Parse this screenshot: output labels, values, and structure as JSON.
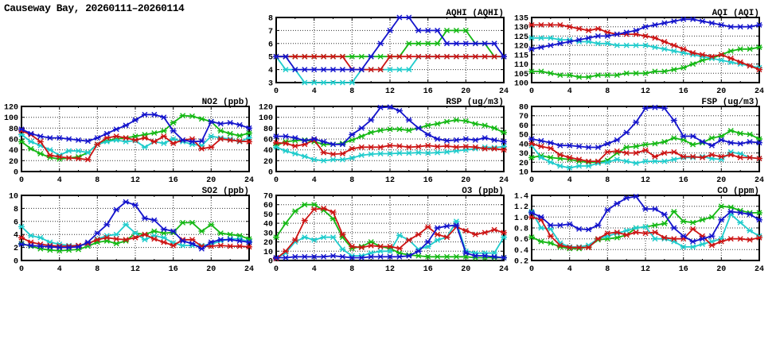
{
  "page_title": "Causeway Bay, 20260111–20260114",
  "axis": {
    "x_range": [
      0,
      24
    ],
    "x_ticks": [
      0,
      4,
      8,
      12,
      16,
      20,
      24
    ],
    "x_minor_step": 2,
    "x_hours": [
      0,
      1,
      2,
      3,
      4,
      5,
      6,
      7,
      8,
      9,
      10,
      11,
      12,
      13,
      14,
      15,
      16,
      17,
      18,
      19,
      20,
      21,
      22,
      23,
      24
    ]
  },
  "series_colors": {
    "blue": "#1414cc",
    "red": "#cc1414",
    "green": "#14b814",
    "cyan": "#20cccc"
  },
  "chart_data": [
    {
      "id": "aqhi",
      "type": "line",
      "title": "AQHI (AQHI)",
      "ylim": [
        3,
        8
      ],
      "yticks": [
        "3",
        "4",
        "5",
        "6",
        "7",
        "8"
      ],
      "grid": true,
      "legend": "none",
      "series": [
        {
          "name": "green",
          "color": "#14b814",
          "values": [
            5,
            5,
            5,
            5,
            5,
            5,
            5,
            5,
            5,
            5,
            5,
            5,
            5,
            5,
            6,
            6,
            6,
            6,
            7,
            7,
            7,
            6,
            6,
            5,
            5
          ]
        },
        {
          "name": "cyan",
          "color": "#20cccc",
          "values": [
            5,
            4,
            4,
            3,
            3,
            3,
            3,
            3,
            3,
            4,
            4,
            4,
            4,
            4,
            4,
            5,
            5,
            5,
            5,
            5,
            5,
            5,
            5,
            5,
            5
          ]
        },
        {
          "name": "red",
          "color": "#cc1414",
          "values": [
            5,
            5,
            5,
            5,
            5,
            5,
            5,
            5,
            4,
            4,
            4,
            4,
            5,
            5,
            5,
            5,
            5,
            5,
            5,
            5,
            5,
            5,
            5,
            5,
            5
          ]
        },
        {
          "name": "blue",
          "color": "#1414cc",
          "values": [
            5,
            5,
            4,
            4,
            4,
            4,
            4,
            4,
            4,
            4,
            5,
            6,
            7,
            8,
            8,
            7,
            7,
            7,
            6,
            6,
            6,
            6,
            6,
            6,
            5
          ]
        }
      ]
    },
    {
      "id": "aqi",
      "type": "line",
      "title": "AQI (AQI)",
      "ylim": [
        100,
        135
      ],
      "yticks": [
        "100",
        "105",
        "110",
        "115",
        "120",
        "125",
        "130",
        "135"
      ],
      "grid": true,
      "legend": "none",
      "series": [
        {
          "name": "green",
          "color": "#14b814",
          "values": [
            106,
            106,
            105,
            104,
            104,
            103,
            103,
            104,
            104,
            104,
            105,
            105,
            105,
            106,
            106,
            107,
            108,
            110,
            112,
            113,
            115,
            117,
            118,
            118,
            119
          ]
        },
        {
          "name": "cyan",
          "color": "#20cccc",
          "values": [
            124,
            124,
            124,
            123,
            123,
            122,
            122,
            121,
            121,
            120,
            120,
            120,
            120,
            119,
            118,
            117,
            116,
            115,
            114,
            113,
            112,
            111,
            110,
            109,
            108
          ]
        },
        {
          "name": "red",
          "color": "#cc1414",
          "values": [
            131,
            131,
            131,
            131,
            130,
            129,
            128,
            129,
            127,
            126,
            126,
            126,
            125,
            124,
            122,
            120,
            118,
            116,
            115,
            114,
            115,
            113,
            111,
            109,
            107
          ]
        },
        {
          "name": "blue",
          "color": "#1414cc",
          "values": [
            118,
            119,
            120,
            121,
            122,
            123,
            124,
            125,
            125,
            126,
            127,
            128,
            130,
            131,
            132,
            133,
            134,
            134,
            133,
            132,
            131,
            130,
            130,
            130,
            131
          ]
        }
      ]
    },
    {
      "id": "no2",
      "type": "line",
      "title": "NO2 (ppb)",
      "ylim": [
        0,
        120
      ],
      "yticks": [
        "0",
        "20",
        "40",
        "60",
        "80",
        "100",
        "120"
      ],
      "grid": true,
      "legend": "none",
      "series": [
        {
          "name": "green",
          "color": "#14b814",
          "values": [
            55,
            42,
            33,
            26,
            23,
            25,
            27,
            35,
            50,
            57,
            60,
            62,
            65,
            68,
            71,
            75,
            90,
            103,
            102,
            97,
            92,
            75,
            70,
            66,
            71
          ]
        },
        {
          "name": "cyan",
          "color": "#20cccc",
          "values": [
            68,
            55,
            48,
            40,
            30,
            38,
            38,
            35,
            50,
            55,
            58,
            55,
            57,
            45,
            55,
            52,
            60,
            55,
            50,
            48,
            65,
            62,
            60,
            55,
            62
          ]
        },
        {
          "name": "red",
          "color": "#cc1414",
          "values": [
            75,
            68,
            55,
            30,
            27,
            25,
            24,
            22,
            50,
            62,
            65,
            62,
            58,
            62,
            55,
            65,
            52,
            58,
            60,
            42,
            45,
            60,
            58,
            56,
            55
          ]
        },
        {
          "name": "blue",
          "color": "#1414cc",
          "values": [
            78,
            70,
            65,
            62,
            62,
            60,
            58,
            56,
            62,
            70,
            78,
            85,
            95,
            105,
            105,
            100,
            75,
            58,
            55,
            56,
            92,
            88,
            90,
            86,
            80
          ]
        }
      ]
    },
    {
      "id": "rsp",
      "type": "line",
      "title": "RSP (ug/m3)",
      "ylim": [
        0,
        120
      ],
      "yticks": [
        "0",
        "20",
        "40",
        "60",
        "80",
        "100",
        "120"
      ],
      "grid": true,
      "legend": "none",
      "series": [
        {
          "name": "green",
          "color": "#14b814",
          "values": [
            48,
            55,
            57,
            58,
            55,
            50,
            50,
            52,
            58,
            65,
            72,
            76,
            78,
            78,
            76,
            80,
            85,
            88,
            92,
            95,
            93,
            88,
            85,
            80,
            72
          ]
        },
        {
          "name": "cyan",
          "color": "#20cccc",
          "values": [
            45,
            38,
            33,
            28,
            22,
            20,
            22,
            22,
            25,
            30,
            32,
            33,
            33,
            34,
            34,
            35,
            34,
            35,
            36,
            38,
            40,
            42,
            45,
            44,
            46
          ]
        },
        {
          "name": "red",
          "color": "#cc1414",
          "values": [
            53,
            52,
            47,
            50,
            58,
            35,
            32,
            33,
            42,
            45,
            45,
            45,
            48,
            47,
            45,
            46,
            48,
            46,
            47,
            45,
            46,
            45,
            42,
            42,
            40
          ]
        },
        {
          "name": "blue",
          "color": "#1414cc",
          "values": [
            65,
            65,
            62,
            57,
            60,
            55,
            50,
            50,
            68,
            80,
            95,
            118,
            119,
            112,
            95,
            80,
            68,
            60,
            57,
            58,
            60,
            58,
            62,
            58,
            55
          ]
        }
      ]
    },
    {
      "id": "fsp",
      "type": "line",
      "title": "FSP (ug/m3)",
      "ylim": [
        10,
        80
      ],
      "yticks": [
        "10",
        "20",
        "30",
        "40",
        "50",
        "60",
        "70",
        "80"
      ],
      "grid": true,
      "legend": "none",
      "series": [
        {
          "name": "green",
          "color": "#14b814",
          "values": [
            25,
            27,
            25,
            24,
            23,
            21,
            20,
            20,
            22,
            30,
            36,
            37,
            39,
            40,
            42,
            46,
            44,
            39,
            41,
            46,
            48,
            54,
            51,
            50,
            45
          ]
        },
        {
          "name": "cyan",
          "color": "#20cccc",
          "values": [
            38,
            25,
            20,
            16,
            14,
            16,
            16,
            19,
            20,
            23,
            21,
            19,
            21,
            21,
            21,
            23,
            25,
            25,
            26,
            24,
            23,
            31,
            29,
            25,
            24
          ]
        },
        {
          "name": "red",
          "color": "#cc1414",
          "values": [
            40,
            37,
            35,
            28,
            25,
            23,
            21,
            21,
            31,
            32,
            30,
            30,
            33,
            26,
            30,
            31,
            26,
            26,
            25,
            28,
            26,
            28,
            25,
            25,
            24
          ]
        },
        {
          "name": "blue",
          "color": "#1414cc",
          "values": [
            45,
            43,
            41,
            38,
            38,
            37,
            36,
            36,
            40,
            44,
            52,
            63,
            78,
            79,
            78,
            65,
            48,
            48,
            42,
            38,
            44,
            41,
            40,
            42,
            41
          ]
        }
      ]
    },
    {
      "id": "so2",
      "type": "line",
      "title": "SO2 (ppb)",
      "ylim": [
        0,
        10
      ],
      "yticks": [
        "0",
        "2",
        "4",
        "6",
        "8",
        "10"
      ],
      "grid": true,
      "legend": "none",
      "series": [
        {
          "name": "green",
          "color": "#14b814",
          "values": [
            2.6,
            2.2,
            1.8,
            1.6,
            1.5,
            1.6,
            1.7,
            2.2,
            2.8,
            3.0,
            2.6,
            3.0,
            4.2,
            4.0,
            4.5,
            4.2,
            4.3,
            5.8,
            5.8,
            4.5,
            5.5,
            4.2,
            4.0,
            3.8,
            3.3
          ]
        },
        {
          "name": "cyan",
          "color": "#20cccc",
          "values": [
            5.2,
            3.8,
            3.5,
            2.8,
            2.5,
            2.3,
            2.3,
            2.5,
            3.3,
            3.8,
            4.0,
            5.5,
            4.2,
            3.2,
            3.8,
            3.5,
            2.7,
            2.3,
            2.3,
            2.3,
            2.5,
            3.0,
            3.3,
            3.3,
            2.9
          ]
        },
        {
          "name": "red",
          "color": "#cc1414",
          "values": [
            3.5,
            2.8,
            2.5,
            2.3,
            2.2,
            2.2,
            2.3,
            2.6,
            3.2,
            3.5,
            3.3,
            3.2,
            3.5,
            4.0,
            3.3,
            2.8,
            2.3,
            3.2,
            3.2,
            2.2,
            2.2,
            2.3,
            2.2,
            2.2,
            2.1
          ]
        },
        {
          "name": "blue",
          "color": "#1414cc",
          "values": [
            2.5,
            2.3,
            2.2,
            2.1,
            2.0,
            2.0,
            2.1,
            2.8,
            4.2,
            5.5,
            7.8,
            9.0,
            8.5,
            6.5,
            6.2,
            4.8,
            4.5,
            3.0,
            2.6,
            1.8,
            2.8,
            3.2,
            3.2,
            3.0,
            2.8
          ]
        }
      ]
    },
    {
      "id": "o3",
      "type": "line",
      "title": "O3 (ppb)",
      "ylim": [
        0,
        70
      ],
      "yticks": [
        "0",
        "10",
        "20",
        "30",
        "40",
        "50",
        "60",
        "70"
      ],
      "grid": true,
      "legend": "none",
      "series": [
        {
          "name": "green",
          "color": "#14b814",
          "values": [
            25,
            40,
            53,
            60,
            60,
            54,
            45,
            25,
            13,
            15,
            20,
            15,
            13,
            8,
            6,
            5,
            4,
            4,
            4,
            4,
            4,
            3,
            3,
            3,
            3
          ]
        },
        {
          "name": "cyan",
          "color": "#20cccc",
          "values": [
            2,
            8,
            20,
            25,
            22,
            25,
            25,
            12,
            5,
            5,
            8,
            10,
            10,
            27,
            22,
            12,
            15,
            22,
            25,
            42,
            10,
            8,
            8,
            8,
            25
          ]
        },
        {
          "name": "red",
          "color": "#cc1414",
          "values": [
            2,
            10,
            22,
            43,
            55,
            56,
            52,
            28,
            15,
            14,
            16,
            15,
            15,
            13,
            22,
            28,
            36,
            28,
            25,
            36,
            32,
            28,
            30,
            33,
            30
          ]
        },
        {
          "name": "blue",
          "color": "#1414cc",
          "values": [
            3,
            3,
            4,
            4,
            4,
            4,
            5,
            4,
            3,
            3,
            4,
            4,
            4,
            4,
            5,
            10,
            20,
            35,
            37,
            38,
            8,
            5,
            5,
            4,
            3
          ]
        }
      ]
    },
    {
      "id": "co",
      "type": "line",
      "title": "CO (ppm)",
      "ylim": [
        0.2,
        1.4
      ],
      "yticks": [
        "0.2",
        "0.4",
        "0.6",
        "0.8",
        "1.0",
        "1.2",
        "1.4"
      ],
      "grid": true,
      "legend": "none",
      "series": [
        {
          "name": "green",
          "color": "#14b814",
          "values": [
            0.63,
            0.55,
            0.52,
            0.45,
            0.42,
            0.42,
            0.45,
            0.58,
            0.6,
            0.62,
            0.67,
            0.8,
            0.82,
            0.85,
            0.88,
            1.1,
            0.92,
            0.9,
            0.95,
            1.0,
            1.2,
            1.18,
            1.12,
            1.08,
            1.08
          ]
        },
        {
          "name": "cyan",
          "color": "#20cccc",
          "values": [
            1.1,
            0.8,
            0.78,
            0.52,
            0.45,
            0.45,
            0.48,
            0.6,
            0.65,
            0.7,
            0.75,
            0.8,
            0.82,
            0.6,
            0.6,
            0.55,
            0.45,
            0.45,
            0.5,
            0.55,
            0.6,
            1.05,
            0.9,
            0.75,
            0.65
          ]
        },
        {
          "name": "red",
          "color": "#cc1414",
          "values": [
            1.0,
            0.95,
            0.65,
            0.48,
            0.44,
            0.44,
            0.44,
            0.6,
            0.7,
            0.72,
            0.67,
            0.72,
            0.7,
            0.72,
            0.62,
            0.6,
            0.6,
            0.78,
            0.65,
            0.48,
            0.55,
            0.6,
            0.6,
            0.58,
            0.62
          ]
        },
        {
          "name": "blue",
          "color": "#1414cc",
          "values": [
            1.08,
            1.0,
            0.85,
            0.85,
            0.87,
            0.78,
            0.77,
            0.85,
            1.13,
            1.25,
            1.35,
            1.38,
            1.15,
            1.15,
            1.05,
            0.8,
            0.65,
            0.55,
            0.6,
            0.65,
            0.95,
            1.1,
            1.08,
            1.05,
            0.95
          ]
        }
      ]
    }
  ]
}
